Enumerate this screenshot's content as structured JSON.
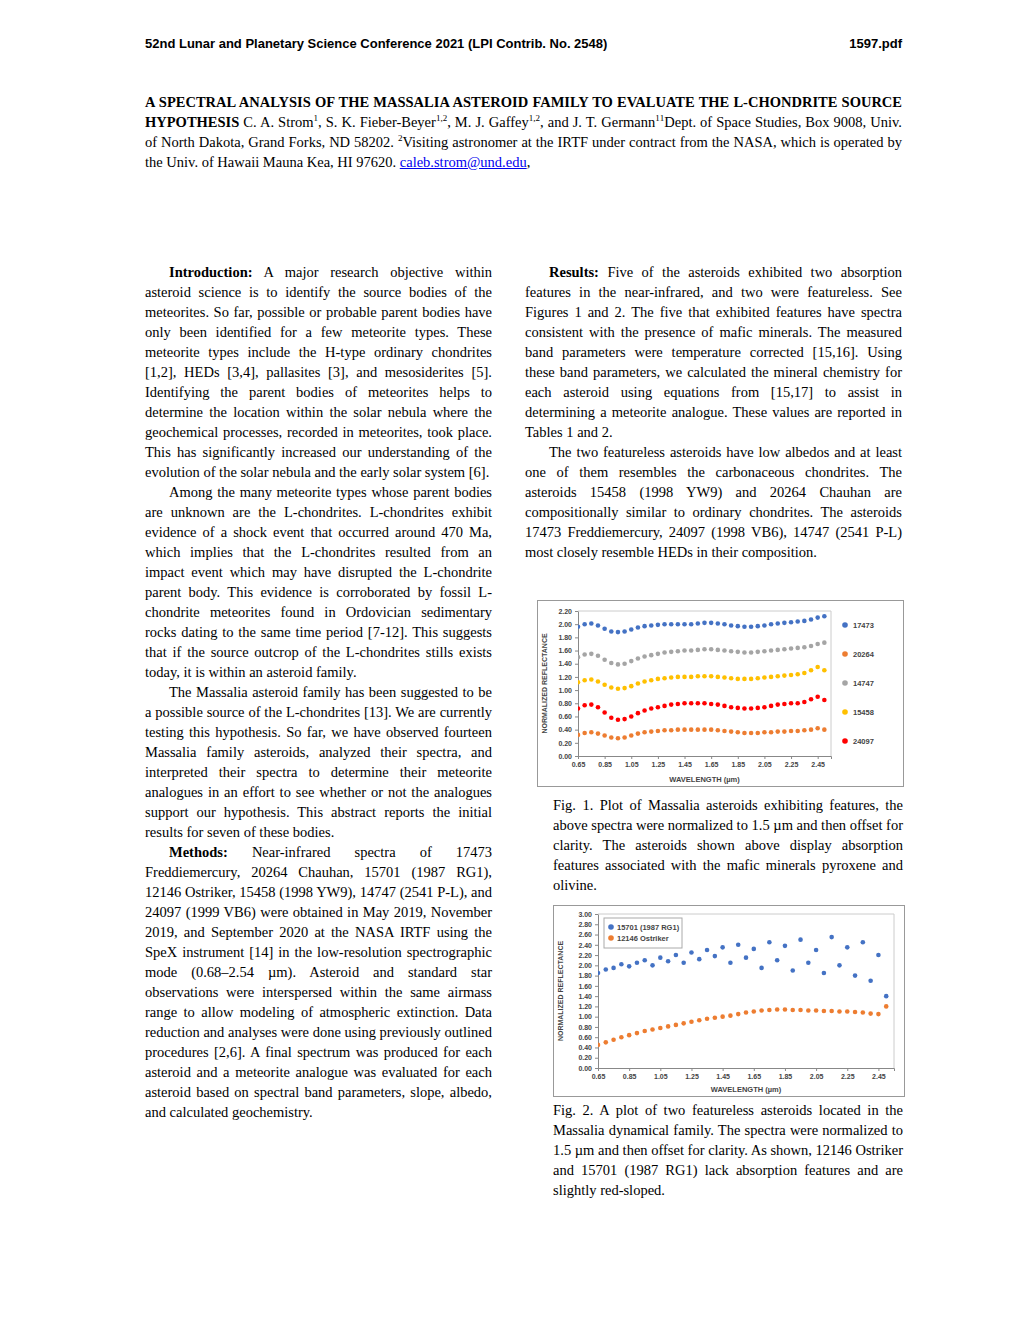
{
  "document": {
    "header": {
      "left": "52nd Lunar and Planetary Science Conference 2021 (LPI Contrib. No. 2548)",
      "right": "1597.pdf"
    },
    "title": "A SPECTRAL ANALYSIS OF THE MASSALIA ASTEROID FAMILY TO EVALUATE THE L-CHONDRITE SOURCE HYPOTHESIS",
    "authors": [
      {
        "text": "C. A. Strom",
        "sup": "1"
      },
      {
        "text": ", S. K. Fieber-Beyer",
        "sup": "1,2"
      },
      {
        "text": ", M. J. Gaffey",
        "sup": "1,2"
      },
      {
        "text": ", and J. T. Germann",
        "sup": "1"
      }
    ],
    "affiliations": [
      {
        "sup": "1",
        "text": "Dept. of Space Studies, Box 9008, Univ. of North Dakota, Grand Forks, ND 58202."
      },
      {
        "sup": "2",
        "text": "Visiting astronomer at the IRTF under contract from the NASA, which is operated by the Univ. of Hawaii Mauna Kea, HI 97620."
      }
    ],
    "email": "caleb.strom@und.edu",
    "email_trailer": ",",
    "left_column": [
      {
        "heading": "Introduction:",
        "text": "A major research objective within asteroid science is to identify the source bodies of the meteorites. So far, possible or probable parent bodies have only been identified for a few meteorite types. These meteorite types include the H-type ordinary chondrites [1,2], HEDs [3,4], pallasites [3], and mesosiderites [5]. Identifying the parent bodies of meteorites helps to determine the location within the solar nebula where the geochemical processes, recorded in meteorites, took place. This has significantly increased our understanding of the evolution of the solar nebula and the early solar system [6]."
      },
      {
        "text": "Among the many meteorite types whose parent bodies are unknown are the L-chondrites. L-chondrites exhibit evidence of a shock event that occurred around 470 Ma, which implies that the L-chondrites resulted from an impact event which may have disrupted the L-chondrite parent body. This evidence is corroborated by fossil L-chondrite meteorites found in Ordovician sedimentary rocks dating to the same time period [7-12]. This suggests that if the source outcrop of the L-chondrites stills exists today, it is within an asteroid family."
      },
      {
        "text": "The Massalia asteroid family has been suggested to be a possible source of the L-chondrites [13]. We are currently testing this hypothesis. So far, we have observed fourteen Massalia family asteroids, analyzed their spectra, and interpreted their spectra to determine their meteorite analogues in an effort to see whether or not the analogues support our hypothesis. This abstract reports the initial results for seven of these bodies."
      },
      {
        "heading": "Methods:",
        "text": "Near-infrared spectra of 17473 Freddiemercury, 20264 Chauhan, 15701 (1987 RG1), 12146 Ostriker, 15458 (1998 YW9), 14747 (2541 P-L), and 24097 (1999 VB6) were obtained in May 2019, November 2019, and September 2020 at the NASA IRTF using the SpeX instrument [14] in the low-resolution spectrographic mode (0.68–2.54 µm). Asteroid and standard star observations were interspersed within the same airmass range to allow modeling of atmospheric extinction. Data reduction and analyses were done using previously outlined procedures [2,6]. A final spectrum was produced for each asteroid and a meteorite analogue was evaluated for each asteroid based on spectral band parameters, slope, albedo, and calculated geochemistry."
      }
    ],
    "right_column": [
      {
        "heading": "Results:",
        "text": "Five of the asteroids exhibited two absorption features in the near-infrared, and two were featureless. See Figures 1 and 2. The five that exhibited features have spectra consistent with the presence of mafic minerals. The measured band parameters were temperature corrected [15,16]. Using these band parameters, we calculated the mineral chemistry for each asteroid using equations from [15,17] to assist in determining a meteorite analogue. These values are reported in Tables 1 and 2."
      },
      {
        "text": "The two featureless asteroids have low albedos and at least one of them resembles the carbonaceous chondrites. The asteroids 15458 (1998 YW9) and 20264 Chauhan are compositionally similar to ordinary chondrites. The asteroids 17473 Freddiemercury, 24097 (1998 VB6), 14747 (2541 P-L) most closely resemble HEDs in their composition."
      }
    ],
    "figure_captions": [
      {
        "label": "Fig. 1.",
        "text": "Plot of Massalia asteroids exhibiting features, the above spectra were normalized to 1.5 µm and then offset for clarity. The asteroids shown above display absorption features associated with the mafic minerals pyroxene and olivine."
      },
      {
        "label": "Fig. 2.",
        "text": "A plot of two featureless asteroids located in the Massalia dynamical family. The spectra were normalized to 1.5 µm and then offset for clarity. As shown, 12146 Ostriker and 15701 (1987 RG1) lack absorption features and are slightly red-sloped."
      }
    ]
  },
  "chart_data": [
    {
      "type": "scatter",
      "xlabel": "WAVELENGTH (µm)",
      "ylabel": "NORMALIZED REFLECTANCE",
      "marker": "circle",
      "legend": "right",
      "grid": false,
      "xlim": [
        0.65,
        2.55
      ],
      "xticks": [
        0.65,
        0.85,
        1.05,
        1.25,
        1.45,
        1.65,
        1.85,
        2.05,
        2.25,
        2.45
      ],
      "ylim": [
        0,
        2.2
      ],
      "yticks": [
        {
          "value": 0,
          "label": "0.00"
        },
        {
          "value": 0.2,
          "label": "0.20"
        },
        {
          "value": 0.4,
          "label": "0.40"
        },
        {
          "value": 0.6,
          "label": "0.60"
        },
        {
          "value": 0.8,
          "label": "0.80"
        },
        {
          "value": 1,
          "label": "1.00"
        },
        {
          "value": 1.2,
          "label": "1.20"
        },
        {
          "value": 1.4,
          "label": "1.40"
        },
        {
          "value": 1.6,
          "label": "1.60"
        },
        {
          "value": 1.8,
          "label": "1.80"
        },
        {
          "value": 2,
          "label": "2.00"
        },
        {
          "value": 2.2,
          "label": "2.20"
        }
      ],
      "x": [
        0.65,
        0.7,
        0.75,
        0.8,
        0.85,
        0.9,
        0.95,
        1.0,
        1.05,
        1.1,
        1.15,
        1.2,
        1.25,
        1.3,
        1.35,
        1.4,
        1.45,
        1.5,
        1.55,
        1.6,
        1.65,
        1.7,
        1.75,
        1.8,
        1.85,
        1.9,
        1.95,
        2.0,
        2.05,
        2.1,
        2.15,
        2.2,
        2.25,
        2.3,
        2.35,
        2.4,
        2.45,
        2.5
      ],
      "series": [
        {
          "name": "17473",
          "color": "#4472c4",
          "values": [
            1.96,
            2.0,
            2.01,
            1.98,
            1.93,
            1.89,
            1.88,
            1.89,
            1.92,
            1.95,
            1.97,
            1.98,
            1.99,
            2.0,
            2.0,
            2.0,
            2.0,
            2.0,
            2.01,
            2.02,
            2.02,
            2.01,
            2.0,
            1.98,
            1.97,
            1.96,
            1.96,
            1.97,
            1.98,
            2.0,
            2.01,
            2.02,
            2.03,
            2.04,
            2.05,
            2.07,
            2.1,
            2.12
          ]
        },
        {
          "name": "20264",
          "color": "#ed7d31",
          "values": [
            0.32,
            0.35,
            0.36,
            0.34,
            0.31,
            0.28,
            0.27,
            0.28,
            0.31,
            0.34,
            0.36,
            0.37,
            0.38,
            0.39,
            0.39,
            0.4,
            0.4,
            0.4,
            0.4,
            0.4,
            0.4,
            0.39,
            0.38,
            0.37,
            0.36,
            0.35,
            0.35,
            0.35,
            0.36,
            0.36,
            0.37,
            0.37,
            0.38,
            0.38,
            0.39,
            0.4,
            0.42,
            0.4
          ]
        },
        {
          "name": "14747",
          "color": "#a5a5a5",
          "values": [
            1.5,
            1.54,
            1.55,
            1.52,
            1.46,
            1.41,
            1.39,
            1.4,
            1.44,
            1.48,
            1.51,
            1.53,
            1.55,
            1.57,
            1.58,
            1.59,
            1.6,
            1.6,
            1.61,
            1.62,
            1.62,
            1.61,
            1.6,
            1.59,
            1.58,
            1.57,
            1.57,
            1.58,
            1.59,
            1.6,
            1.61,
            1.62,
            1.63,
            1.64,
            1.65,
            1.67,
            1.7,
            1.72
          ]
        },
        {
          "name": "15458",
          "color": "#ffc000",
          "values": [
            1.12,
            1.15,
            1.16,
            1.13,
            1.08,
            1.04,
            1.02,
            1.03,
            1.06,
            1.1,
            1.13,
            1.15,
            1.17,
            1.18,
            1.19,
            1.2,
            1.2,
            1.2,
            1.21,
            1.21,
            1.21,
            1.2,
            1.19,
            1.18,
            1.17,
            1.17,
            1.17,
            1.18,
            1.19,
            1.2,
            1.21,
            1.22,
            1.23,
            1.24,
            1.26,
            1.3,
            1.35,
            1.3
          ]
        },
        {
          "name": "24097",
          "color": "#ff0000",
          "values": [
            0.72,
            0.77,
            0.78,
            0.74,
            0.66,
            0.58,
            0.55,
            0.56,
            0.6,
            0.65,
            0.69,
            0.72,
            0.74,
            0.76,
            0.78,
            0.79,
            0.8,
            0.8,
            0.8,
            0.8,
            0.79,
            0.78,
            0.76,
            0.74,
            0.73,
            0.72,
            0.72,
            0.73,
            0.74,
            0.76,
            0.78,
            0.79,
            0.8,
            0.8,
            0.82,
            0.86,
            0.9,
            0.85
          ]
        }
      ]
    },
    {
      "type": "scatter",
      "xlabel": "WAVELENGTH (µm)",
      "ylabel": "NORMALIZED REFLECTANCE",
      "marker": "circle",
      "legend": "upper left",
      "grid": false,
      "xlim": [
        0.65,
        2.55
      ],
      "xticks": [
        0.65,
        0.85,
        1.05,
        1.25,
        1.45,
        1.65,
        1.85,
        2.05,
        2.25,
        2.45
      ],
      "ylim": [
        0,
        3
      ],
      "yticks": [
        {
          "value": 0,
          "label": "0.00"
        },
        {
          "value": 0.2,
          "label": "0.20"
        },
        {
          "value": 0.4,
          "label": "0.40"
        },
        {
          "value": 0.6,
          "label": "0.60"
        },
        {
          "value": 0.8,
          "label": "0.80"
        },
        {
          "value": 1,
          "label": "1.00"
        },
        {
          "value": 1.2,
          "label": "1.20"
        },
        {
          "value": 1.4,
          "label": "1.40"
        },
        {
          "value": 1.6,
          "label": "1.60"
        },
        {
          "value": 1.8,
          "label": "1.80"
        },
        {
          "value": 2,
          "label": "2.00"
        },
        {
          "value": 2.2,
          "label": "2.20"
        },
        {
          "value": 2.4,
          "label": "2.40"
        },
        {
          "value": 2.6,
          "label": "2.60"
        },
        {
          "value": 2.8,
          "label": "2.80"
        },
        {
          "value": 3,
          "label": "3.00"
        }
      ],
      "x": [
        0.65,
        0.7,
        0.75,
        0.8,
        0.85,
        0.9,
        0.95,
        1.0,
        1.05,
        1.1,
        1.15,
        1.2,
        1.25,
        1.3,
        1.35,
        1.4,
        1.45,
        1.5,
        1.55,
        1.6,
        1.65,
        1.7,
        1.75,
        1.8,
        1.85,
        1.9,
        1.95,
        2.0,
        2.05,
        2.1,
        2.15,
        2.2,
        2.25,
        2.3,
        2.35,
        2.4,
        2.45,
        2.5
      ],
      "series": [
        {
          "name": "15701 (1987 RG1)",
          "color": "#4472c4",
          "values": [
            1.85,
            1.92,
            1.95,
            2.02,
            1.98,
            2.05,
            2.1,
            2.0,
            2.15,
            2.08,
            2.2,
            2.05,
            2.25,
            2.12,
            2.3,
            2.18,
            2.35,
            2.05,
            2.4,
            2.15,
            2.32,
            1.95,
            2.45,
            2.1,
            2.38,
            1.9,
            2.5,
            2.05,
            2.3,
            1.85,
            2.55,
            2.0,
            2.35,
            1.8,
            2.45,
            1.7,
            2.2,
            1.4
          ]
        },
        {
          "name": "12146 Ostriker",
          "color": "#ed7d31",
          "values": [
            0.45,
            0.5,
            0.55,
            0.6,
            0.64,
            0.68,
            0.72,
            0.75,
            0.78,
            0.81,
            0.84,
            0.87,
            0.9,
            0.93,
            0.96,
            0.98,
            1.0,
            1.02,
            1.05,
            1.08,
            1.1,
            1.12,
            1.13,
            1.14,
            1.14,
            1.13,
            1.13,
            1.12,
            1.12,
            1.11,
            1.11,
            1.1,
            1.1,
            1.09,
            1.08,
            1.06,
            1.05,
            1.2
          ]
        }
      ]
    }
  ]
}
